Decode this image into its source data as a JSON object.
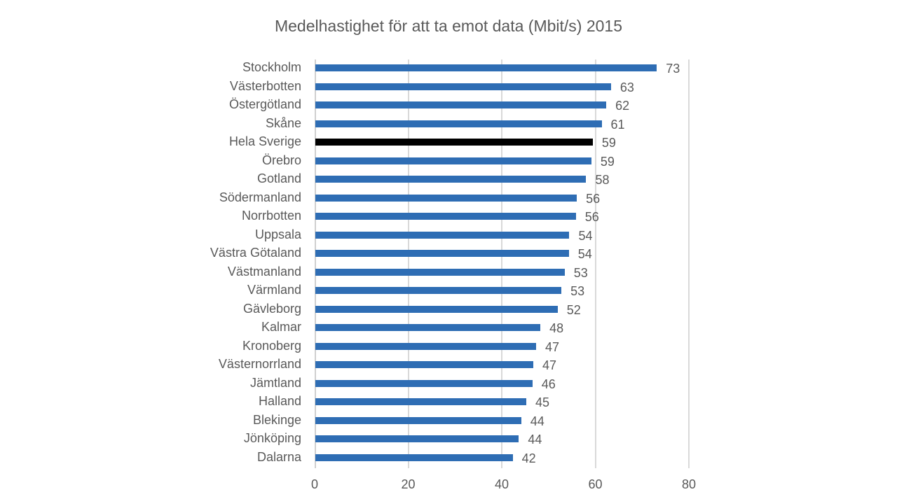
{
  "chart_data": {
    "type": "bar",
    "orientation": "horizontal",
    "title": "Medelhastighet  för att ta emot data (Mbit/s) 2015",
    "xlabel": "",
    "ylabel": "",
    "xlim": [
      0,
      80
    ],
    "x_ticks": [
      0,
      20,
      40,
      60,
      80
    ],
    "grid": true,
    "legend": null,
    "data_labels": true,
    "categories": [
      "Stockholm",
      "Västerbotten",
      "Östergötland",
      "Skåne",
      "Hela Sverige",
      "Örebro",
      "Gotland",
      "Södermanland",
      "Norrbotten",
      "Uppsala",
      "Västra Götaland",
      "Västmanland",
      "Värmland",
      "Gävleborg",
      "Kalmar",
      "Kronoberg",
      "Västernorrland",
      "Jämtland",
      "Halland",
      "Blekinge",
      "Jönköping",
      "Dalarna"
    ],
    "values": [
      73,
      63,
      62,
      61,
      59,
      59,
      58,
      56,
      56,
      54,
      54,
      53,
      53,
      52,
      48,
      47,
      47,
      46,
      45,
      44,
      44,
      42
    ],
    "bar_values_precise": [
      73.0,
      63.2,
      62.2,
      61.2,
      59.3,
      59.0,
      57.9,
      55.9,
      55.7,
      54.3,
      54.2,
      53.3,
      52.6,
      51.8,
      48.1,
      47.2,
      46.6,
      46.4,
      45.1,
      44.0,
      43.5,
      42.2
    ],
    "highlight_category": "Hela Sverige",
    "colors": {
      "bar": "#2e6db4",
      "highlight_bar": "#000000",
      "gridline": "#d9d9d9",
      "text": "#595959"
    }
  }
}
